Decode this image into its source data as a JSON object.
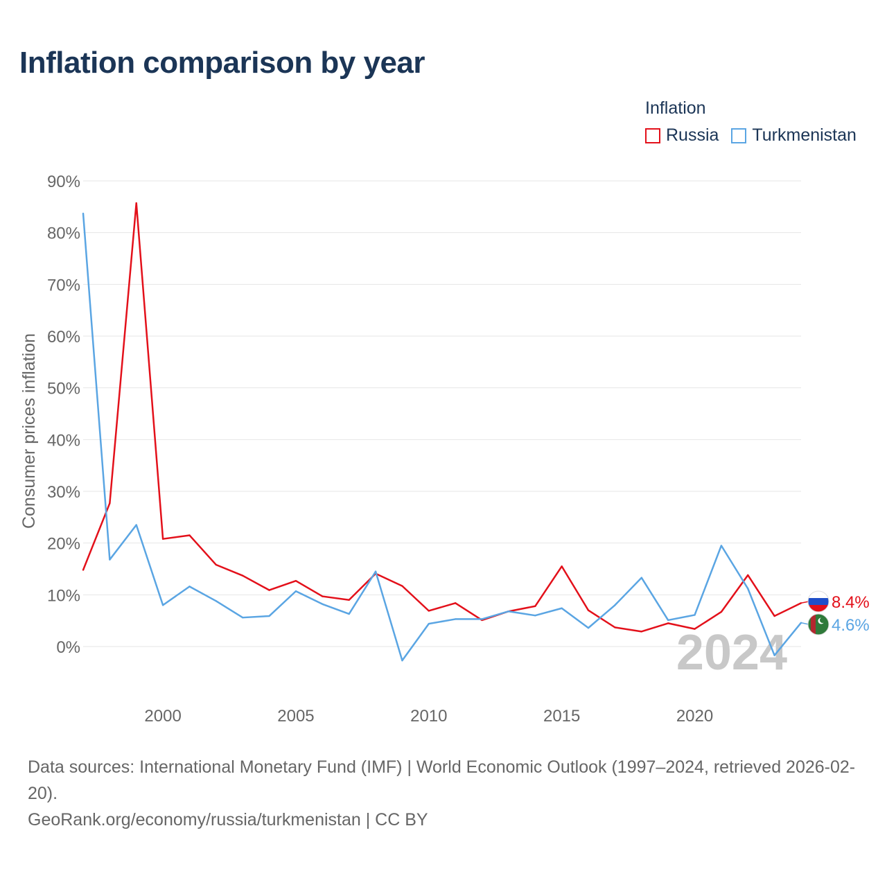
{
  "title": "Inflation comparison by year",
  "legend": {
    "title": "Inflation",
    "items": [
      {
        "label": "Russia",
        "color": "#e3101a"
      },
      {
        "label": "Turkmenistan",
        "color": "#5aa5e3"
      }
    ]
  },
  "chart_data": {
    "type": "line",
    "ylabel": "Consumer prices inflation",
    "xlabel": "",
    "x": [
      1997,
      1998,
      1999,
      2000,
      2001,
      2002,
      2003,
      2004,
      2005,
      2006,
      2007,
      2008,
      2009,
      2010,
      2011,
      2012,
      2013,
      2014,
      2015,
      2016,
      2017,
      2018,
      2019,
      2020,
      2021,
      2022,
      2023,
      2024
    ],
    "xlim": [
      1997,
      2024
    ],
    "ylim": [
      -10,
      90
    ],
    "yticks": [
      0,
      10,
      20,
      30,
      40,
      50,
      60,
      70,
      80,
      90
    ],
    "ytick_labels": [
      "0%",
      "10%",
      "20%",
      "30%",
      "40%",
      "50%",
      "60%",
      "70%",
      "80%",
      "90%"
    ],
    "xticks": [
      2000,
      2005,
      2010,
      2015,
      2020
    ],
    "xtick_labels": [
      "2000",
      "2005",
      "2010",
      "2015",
      "2020"
    ],
    "series": [
      {
        "name": "Russia",
        "color": "#e3101a",
        "values": [
          14.8,
          27.7,
          85.7,
          20.8,
          21.5,
          15.8,
          13.7,
          10.9,
          12.7,
          9.7,
          9.0,
          14.1,
          11.7,
          6.9,
          8.4,
          5.1,
          6.8,
          7.8,
          15.5,
          7.0,
          3.7,
          2.9,
          4.5,
          3.4,
          6.7,
          13.8,
          5.9,
          8.4
        ],
        "end_label": "8.4%"
      },
      {
        "name": "Turkmenistan",
        "color": "#5aa5e3",
        "values": [
          83.7,
          16.8,
          23.5,
          8.0,
          11.6,
          8.8,
          5.6,
          5.9,
          10.7,
          8.2,
          6.3,
          14.5,
          -2.7,
          4.4,
          5.3,
          5.3,
          6.8,
          6.0,
          7.4,
          3.6,
          8.0,
          13.3,
          5.1,
          6.1,
          19.5,
          11.2,
          -1.7,
          4.6
        ],
        "end_label": "4.6%"
      }
    ],
    "watermark": "2024"
  },
  "source": {
    "line1": "Data sources: International Monetary Fund (IMF) | World Economic Outlook (1997–2024, retrieved 2026-02-20).",
    "line2": "GeoRank.org/economy/russia/turkmenistan | CC BY"
  }
}
